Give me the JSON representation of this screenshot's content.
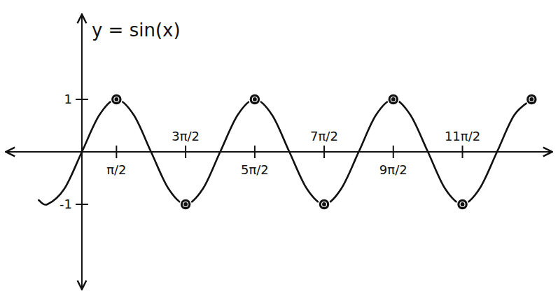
{
  "chart_data": {
    "type": "line",
    "title": "y = sin(x)",
    "x": [
      -1.96,
      -1.57,
      -0.79,
      0,
      0.79,
      1.57,
      2.36,
      3.14,
      3.93,
      4.71,
      5.5,
      6.28,
      7.07,
      7.85,
      8.64,
      9.42,
      10.21,
      11.0,
      11.78,
      12.57,
      13.35,
      14.14,
      14.92,
      15.71,
      16.49,
      17.28,
      18.06,
      18.85,
      19.63,
      20.42
    ],
    "series": [
      {
        "type": "line",
        "color": "#111111",
        "values": [
          -0.92,
          -1,
          -0.7,
          0,
          0.7,
          1,
          0.7,
          0,
          -0.7,
          -1,
          -0.7,
          0,
          0.7,
          1,
          0.7,
          0,
          -0.7,
          -1,
          -0.7,
          0,
          0.7,
          1,
          0.7,
          0,
          -0.7,
          -1,
          -0.7,
          0,
          0.7,
          1
        ]
      },
      {
        "type": "scatter",
        "color": "#111111",
        "marker": "circle",
        "values": [
          null,
          null,
          null,
          null,
          null,
          1,
          null,
          null,
          null,
          -1,
          null,
          null,
          null,
          1,
          null,
          null,
          null,
          -1,
          null,
          null,
          null,
          1,
          null,
          null,
          null,
          -1,
          null,
          null,
          null,
          1
        ]
      }
    ],
    "xlim": [
      -3.4,
      21.3
    ],
    "ylim": [
      -2.6,
      2.6
    ],
    "xticks": [
      {
        "value": 1.57,
        "label": "π/2"
      },
      {
        "value": 4.71,
        "label": "3π/2"
      },
      {
        "value": 7.85,
        "label": "5π/2"
      },
      {
        "value": 11.0,
        "label": "7π/2"
      },
      {
        "value": 14.14,
        "label": "9π/2"
      },
      {
        "value": 17.28,
        "label": "11π/2"
      }
    ],
    "yticks": [
      1,
      -1
    ],
    "grid": false
  }
}
